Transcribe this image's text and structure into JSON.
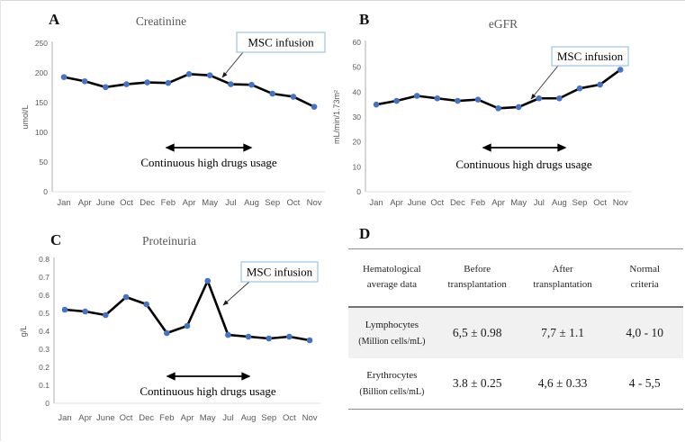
{
  "annotations": {
    "msc_infusion": "MSC infusion",
    "drug_usage": "Continuous high drugs usage"
  },
  "chart_data": [
    {
      "id": "creatinine",
      "panel_label": "A",
      "type": "line",
      "title": "Creatinine",
      "ylabel": "umol/L",
      "ylim": [
        0,
        250
      ],
      "ytick_step": 50,
      "ytick_decimals": 0,
      "grid": false,
      "categories": [
        "Jan",
        "Apr",
        "June",
        "Oct",
        "Dec",
        "Feb",
        "Apr",
        "May",
        "Jul",
        "Aug",
        "Sep",
        "Oct",
        "Nov"
      ],
      "values": [
        193,
        186,
        176,
        181,
        184,
        183,
        198,
        196,
        181,
        180,
        165,
        160,
        143
      ],
      "annotations": [
        "MSC infusion",
        "Continuous high drugs usage"
      ]
    },
    {
      "id": "egfr",
      "panel_label": "B",
      "type": "line",
      "title": "eGFR",
      "ylabel": "mL/min/1.73m²",
      "ylim": [
        0,
        60
      ],
      "ytick_step": 10,
      "ytick_decimals": 0,
      "grid": false,
      "categories": [
        "Jan",
        "Apr",
        "June",
        "Oct",
        "Dec",
        "Feb",
        "Apr",
        "May",
        "Jul",
        "Aug",
        "Sep",
        "Oct",
        "Nov"
      ],
      "values": [
        35,
        36.5,
        38.5,
        37.5,
        36.5,
        37,
        33.5,
        34,
        37.5,
        37.5,
        41.5,
        43,
        49
      ],
      "annotations": [
        "MSC infusion",
        "Continuous high drugs usage"
      ]
    },
    {
      "id": "proteinuria",
      "panel_label": "C",
      "type": "line",
      "title": "Proteinuria",
      "ylabel": "g/L",
      "ylim": [
        0,
        0.8
      ],
      "ytick_step": 0.1,
      "ytick_decimals": 1,
      "grid": false,
      "categories": [
        "Jan",
        "Apr",
        "June",
        "Oct",
        "Dec",
        "Feb",
        "Apr",
        "May",
        "Jul",
        "Aug",
        "Sep",
        "Oct",
        "Nov"
      ],
      "values": [
        0.52,
        0.51,
        0.49,
        0.59,
        0.55,
        0.39,
        0.43,
        0.68,
        0.38,
        0.37,
        0.36,
        0.37,
        0.35
      ],
      "annotations": [
        "MSC infusion",
        "Continuous high drugs usage"
      ]
    }
  ],
  "table": {
    "panel_label": "D",
    "headers": [
      "Hematological\naverage data",
      "Before\ntransplantation",
      "After\ntransplantation",
      "Normal\ncriteria"
    ],
    "rows": [
      {
        "name": "Lymphocytes",
        "unit": "(Million cells/mL)",
        "before": "6,5 ± 0.98",
        "after": "7,7 ± 1.1",
        "normal": "4,0 - 10"
      },
      {
        "name": "Erythrocytes",
        "unit": "(Billion cells/mL)",
        "before": "3.8 ± 0.25",
        "after": "4,6 ± 0.33",
        "normal": "4 - 5,5"
      }
    ]
  },
  "colors": {
    "marker_blue": "#4472c4",
    "series_line": "#000000",
    "msc_box_border": "#9dc3e6",
    "shaded_row": "#f1f1f1",
    "title_gray": "#595959"
  }
}
